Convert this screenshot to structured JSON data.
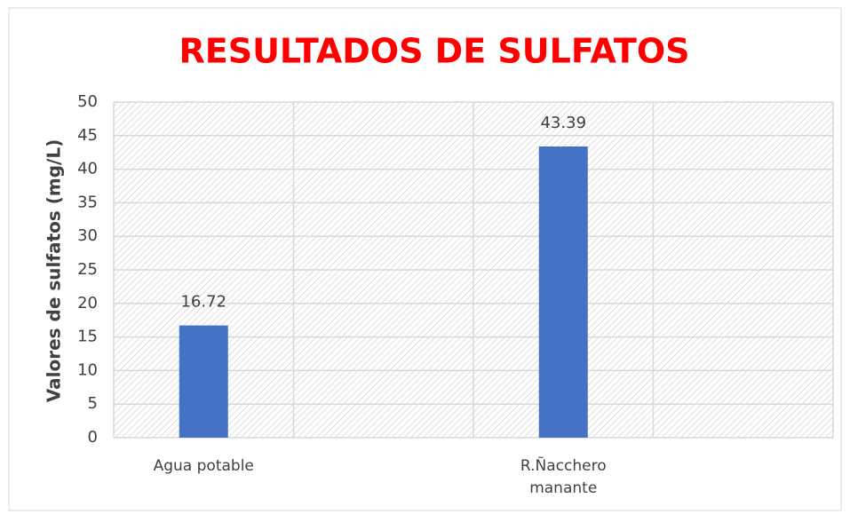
{
  "chart_data": {
    "type": "bar",
    "title": "RESULTADOS DE SULFATOS",
    "y_label": "Valores de sulfatos (mg/L)",
    "categories": [
      "Agua potable",
      null,
      "R.Ñacchero manante",
      null
    ],
    "values": [
      16.72,
      null,
      43.39,
      null
    ],
    "color": "#4472c4",
    "ylim": [
      0,
      50
    ],
    "yticks": [
      0,
      5,
      10,
      15,
      20,
      25,
      30,
      35,
      40,
      45,
      50
    ],
    "grid": true
  }
}
